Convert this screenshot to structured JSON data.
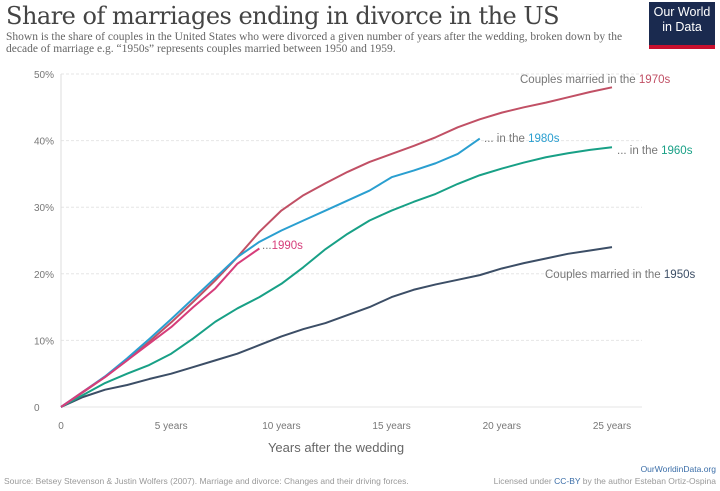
{
  "title": "Share of marriages ending in divorce in the US",
  "subtitle": "Shown is the share of couples in the United States who were divorced a given number of years after the wedding, broken down by the decade of marriage e.g. “1950s” represents couples married between 1950 and 1959.",
  "logo": {
    "line1": "Our World",
    "line2": "in Data"
  },
  "footer": {
    "source": "Source: Betsey Stevenson & Justin Wolfers (2007). Marriage and divorce: Changes and their driving forces.",
    "site": "OurWorldinData.org",
    "license_prefix": "Licensed under ",
    "license_link": "CC-BY",
    "license_suffix": " by the author Esteban Ortiz-Ospina"
  },
  "chart_data": {
    "type": "line",
    "title": "Share of marriages ending in divorce in the US",
    "xlabel": "Years after the wedding",
    "ylabel": "",
    "xlim": [
      0,
      25
    ],
    "ylim": [
      0,
      50
    ],
    "x_ticks": [
      {
        "v": 0,
        "label": "0"
      },
      {
        "v": 5,
        "label": "5 years"
      },
      {
        "v": 10,
        "label": "10 years"
      },
      {
        "v": 15,
        "label": "15 years"
      },
      {
        "v": 20,
        "label": "20 years"
      },
      {
        "v": 25,
        "label": "25 years"
      }
    ],
    "y_ticks": [
      {
        "v": 0,
        "label": "0"
      },
      {
        "v": 10,
        "label": "10%"
      },
      {
        "v": 20,
        "label": "20%"
      },
      {
        "v": 30,
        "label": "30%"
      },
      {
        "v": 40,
        "label": "40%"
      },
      {
        "v": 50,
        "label": "50%"
      }
    ],
    "grid": "horizontal",
    "series": [
      {
        "name": "1950s",
        "label_prefix": "Couples married in the ",
        "color": "#3c4e66",
        "values": [
          0,
          1.5,
          2.6,
          3.3,
          4.2,
          5,
          6,
          7,
          8,
          9.3,
          10.6,
          11.7,
          12.6,
          13.8,
          15,
          16.5,
          17.6,
          18.4,
          19.1,
          19.8,
          20.8,
          21.6,
          22.3,
          23,
          23.5,
          24
        ]
      },
      {
        "name": "1960s",
        "label_prefix": "... in the ",
        "color": "#18a086",
        "values": [
          0,
          1.8,
          3.6,
          5,
          6.3,
          8,
          10.3,
          12.8,
          14.8,
          16.5,
          18.5,
          21,
          23.7,
          26,
          28,
          29.5,
          30.8,
          32,
          33.5,
          34.8,
          35.8,
          36.7,
          37.5,
          38.1,
          38.6,
          39
        ]
      },
      {
        "name": "1970s",
        "label_prefix": "Couples married in the ",
        "color": "#c15065",
        "values": [
          0,
          2.2,
          4.5,
          7,
          9.8,
          12.7,
          15.8,
          19,
          22.5,
          26.3,
          29.5,
          31.8,
          33.6,
          35.3,
          36.8,
          38,
          39.2,
          40.5,
          42,
          43.2,
          44.2,
          45,
          45.7,
          46.5,
          47.3,
          48
        ]
      },
      {
        "name": "1980s",
        "label_prefix": "... in the ",
        "color": "#2a9fd0",
        "values": [
          0,
          2.3,
          4.6,
          7.3,
          10.2,
          13.2,
          16.3,
          19.4,
          22.5,
          24.8,
          26.5,
          28,
          29.5,
          31,
          32.5,
          34.5,
          35.5,
          36.6,
          38,
          40.3
        ]
      },
      {
        "name": "1990s",
        "label_prefix": "...",
        "color": "#d63d7a",
        "values": [
          0,
          2.3,
          4.5,
          7,
          9.5,
          12,
          15,
          17.8,
          21.5,
          23.8
        ]
      }
    ]
  }
}
